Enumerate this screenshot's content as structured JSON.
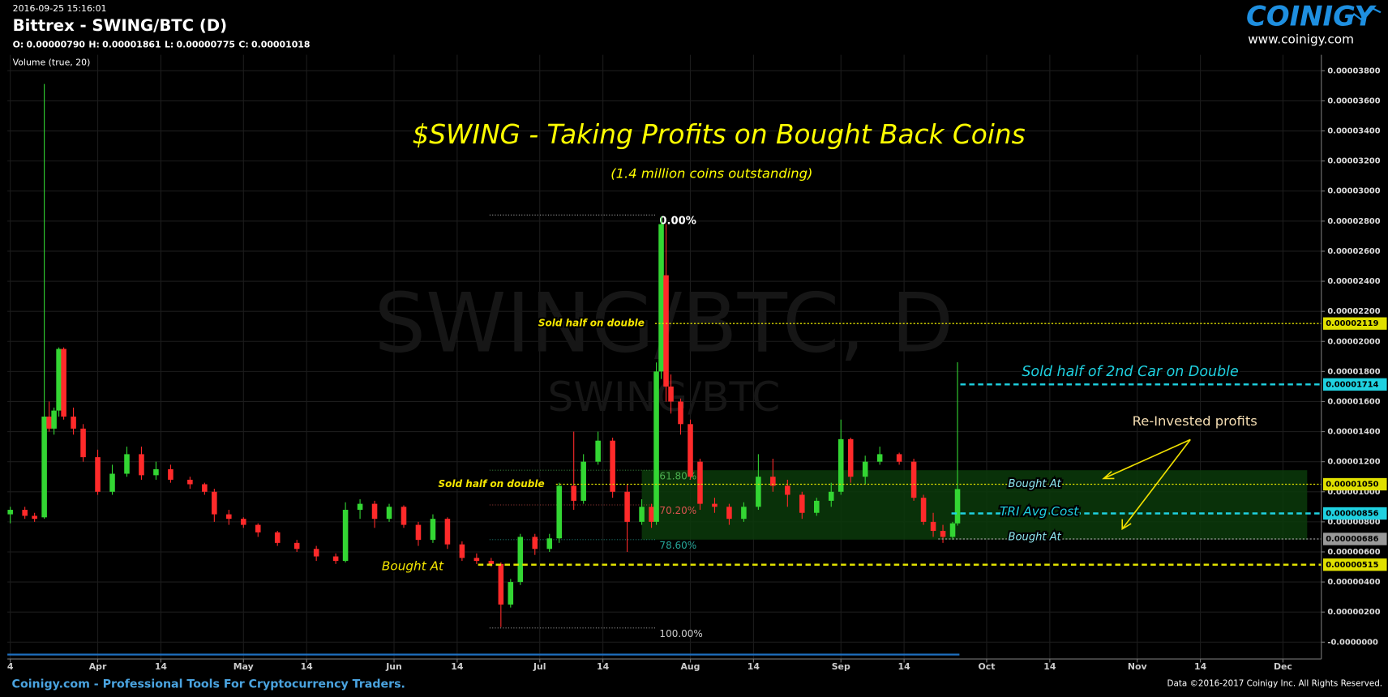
{
  "chart_data": {
    "type": "candlestick",
    "timestamp": "2016-09-25 15:16:01",
    "header": "Bittrex - SWING/BTC (D)",
    "last_ohlc": [
      {
        "name": "O:",
        "value": 7.9e-06,
        "label": "0.00000790"
      },
      {
        "name": "H:",
        "value": 1.861e-05,
        "label": "0.00001861"
      },
      {
        "name": "L:",
        "value": 7.75e-06,
        "label": "0.00000775"
      },
      {
        "name": "C:",
        "value": 1.018e-05,
        "label": "0.00001018"
      }
    ],
    "indicator": "Volume (true, 20)",
    "watermark": "SWING/BTC, D",
    "watermark_sub": "SWING/BTC",
    "title": "$SWING - Taking Profits on Bought Back Coins",
    "subtitle": "(1.4 million coins outstanding)",
    "logo": "COINIGY",
    "logo_url": "www.coinigy.com",
    "footer_left": "Coinigy.com - Professional Tools For Cryptocurrency Traders.",
    "footer_right": "Data ©2016-2017 Coinigy Inc. All Rights Reserved.",
    "up_color": "#33d633",
    "down_color": "#ff2a2a",
    "grid": true,
    "xlim": [
      73.4,
      343.9
    ],
    "ylim": [
      -1.12e-06,
      3.906e-05
    ],
    "xticks": [
      {
        "value": 74,
        "label": "4"
      },
      {
        "value": 92,
        "label": "Apr"
      },
      {
        "value": 105,
        "label": "14"
      },
      {
        "value": 122,
        "label": "May"
      },
      {
        "value": 135,
        "label": "14"
      },
      {
        "value": 153,
        "label": "Jun"
      },
      {
        "value": 166,
        "label": "14"
      },
      {
        "value": 183,
        "label": "Jul"
      },
      {
        "value": 196,
        "label": "14"
      },
      {
        "value": 214,
        "label": "Aug"
      },
      {
        "value": 227,
        "label": "14"
      },
      {
        "value": 245,
        "label": "Sep"
      },
      {
        "value": 258,
        "label": "14"
      },
      {
        "value": 275,
        "label": "Oct"
      },
      {
        "value": 288,
        "label": "14"
      },
      {
        "value": 306,
        "label": "Nov"
      },
      {
        "value": 319,
        "label": "14"
      },
      {
        "value": 336,
        "label": "Dec"
      }
    ],
    "yticks": [
      {
        "value": 0,
        "label": "-0.0000000"
      },
      {
        "value": 2e-06,
        "label": "0.00000200"
      },
      {
        "value": 4e-06,
        "label": "0.00000400"
      },
      {
        "value": 6e-06,
        "label": "0.00000600"
      },
      {
        "value": 8e-06,
        "label": "0.00000800"
      },
      {
        "value": 1e-05,
        "label": "0.00001000"
      },
      {
        "value": 1.2e-05,
        "label": "0.00001200"
      },
      {
        "value": 1.4e-05,
        "label": "0.00001400"
      },
      {
        "value": 1.6e-05,
        "label": "0.00001600"
      },
      {
        "value": 1.8e-05,
        "label": "0.00001800"
      },
      {
        "value": 2e-05,
        "label": "0.00002000"
      },
      {
        "value": 2.2e-05,
        "label": "0.00002200"
      },
      {
        "value": 2.4e-05,
        "label": "0.00002400"
      },
      {
        "value": 2.6e-05,
        "label": "0.00002600"
      },
      {
        "value": 2.8e-05,
        "label": "0.00002800"
      },
      {
        "value": 3e-05,
        "label": "0.00003000"
      },
      {
        "value": 3.2e-05,
        "label": "0.00003200"
      },
      {
        "value": 3.4e-05,
        "label": "0.00003400"
      },
      {
        "value": 3.6e-05,
        "label": "0.00003600"
      },
      {
        "value": 3.8e-05,
        "label": "0.00003800"
      }
    ],
    "x": [
      74,
      77,
      79,
      81,
      82,
      83,
      84,
      85,
      87,
      89,
      92,
      95,
      98,
      101,
      104,
      107,
      111,
      114,
      116,
      119,
      122,
      125,
      129,
      133,
      137,
      141,
      143,
      146,
      149,
      152,
      155,
      158,
      161,
      164,
      167,
      170,
      173,
      175,
      177,
      179,
      182,
      185,
      187,
      190,
      192,
      195,
      198,
      201,
      204,
      206,
      207,
      208,
      209,
      210,
      212,
      214,
      216,
      219,
      222,
      225,
      228,
      231,
      234,
      237,
      240,
      243,
      245,
      247,
      250,
      253,
      257,
      260,
      262,
      264,
      266,
      268,
      269
    ],
    "open": [
      8.5e-06,
      8.8e-06,
      8.4e-06,
      8.3e-06,
      1.5e-05,
      1.42e-05,
      1.54e-05,
      1.95e-05,
      1.5e-05,
      1.42e-05,
      1.23e-05,
      1e-05,
      1.12e-05,
      1.25e-05,
      1.11e-05,
      1.15e-05,
      1.08e-05,
      1.05e-05,
      1e-05,
      8.5e-06,
      8.2e-06,
      7.8e-06,
      7.3e-06,
      6.6e-06,
      6.2e-06,
      5.7e-06,
      5.4e-06,
      8.8e-06,
      9.2e-06,
      8.2e-06,
      9e-06,
      7.8e-06,
      6.8e-06,
      8.2e-06,
      6.5e-06,
      5.6e-06,
      5.4e-06,
      5.2e-06,
      2.5e-06,
      4e-06,
      7e-06,
      6.2e-06,
      6.9e-06,
      1.04e-05,
      9.4e-06,
      1.2e-05,
      1.34e-05,
      1e-05,
      8e-06,
      9e-06,
      8e-06,
      1.8e-05,
      2.44e-05,
      1.7e-05,
      1.6e-05,
      1.45e-05,
      1.2e-05,
      9.2e-06,
      9e-06,
      8.2e-06,
      9e-06,
      1.1e-05,
      1.04e-05,
      9.8e-06,
      8.6e-06,
      9.4e-06,
      1e-05,
      1.35e-05,
      1.1e-05,
      1.2e-05,
      1.25e-05,
      1.2e-05,
      9.6e-06,
      8e-06,
      7.4e-06,
      7e-06,
      7.9e-06
    ],
    "high": [
      9e-06,
      9e-06,
      8.6e-06,
      3.712e-05,
      1.6e-05,
      1.56e-05,
      1.96e-05,
      1.96e-05,
      1.56e-05,
      1.45e-05,
      1.28e-05,
      1.18e-05,
      1.3e-05,
      1.3e-05,
      1.2e-05,
      1.18e-05,
      1.1e-05,
      1.06e-05,
      1.02e-05,
      8.8e-06,
      8.3e-06,
      7.9e-06,
      7.4e-06,
      6.8e-06,
      6.4e-06,
      5.9e-06,
      9.3e-06,
      9.5e-06,
      9.4e-06,
      9.2e-06,
      9.1e-06,
      8e-06,
      8.5e-06,
      8.3e-06,
      6.7e-06,
      5.9e-06,
      5.6e-06,
      5.3e-06,
      4.2e-06,
      7.2e-06,
      7.2e-06,
      7.2e-06,
      1.06e-05,
      1.4e-05,
      1.25e-05,
      1.4e-05,
      1.36e-05,
      1.05e-05,
      9.5e-06,
      9.2e-06,
      1.86e-05,
      2.83e-05,
      2.78e-05,
      1.78e-05,
      1.62e-05,
      1.48e-05,
      1.22e-05,
      9.6e-06,
      9.2e-06,
      9.3e-06,
      1.25e-05,
      1.22e-05,
      1.08e-05,
      1e-05,
      9.6e-06,
      1.06e-05,
      1.48e-05,
      1.36e-05,
      1.24e-05,
      1.3e-05,
      1.26e-05,
      1.22e-05,
      9.8e-06,
      8.6e-06,
      7.8e-06,
      8e-06,
      1.861e-05
    ],
    "low": [
      7.9e-06,
      8.2e-06,
      8e-06,
      8.2e-06,
      1.4e-05,
      1.38e-05,
      1.5e-05,
      1.48e-05,
      1.38e-05,
      1.2e-05,
      9.8e-06,
      9.8e-06,
      1.1e-05,
      1.08e-05,
      1.08e-05,
      1.06e-05,
      1.02e-05,
      9.8e-06,
      8e-06,
      7.8e-06,
      7.6e-06,
      7e-06,
      6.4e-06,
      6e-06,
      5.4e-06,
      5.2e-06,
      5.3e-06,
      8.2e-06,
      7.6e-06,
      8e-06,
      7.6e-06,
      6.4e-06,
      6.6e-06,
      6.2e-06,
      5.4e-06,
      5.2e-06,
      5e-06,
      1e-06,
      2.3e-06,
      3.8e-06,
      5.8e-06,
      6e-06,
      6.6e-06,
      8.8e-06,
      9.2e-06,
      1.18e-05,
      9.6e-06,
      6e-06,
      7.8e-06,
      7.6e-06,
      7.8e-06,
      1.75e-05,
      1.6e-05,
      1.52e-05,
      1.38e-05,
      1.08e-05,
      8.8e-06,
      8.6e-06,
      7.8e-06,
      8e-06,
      8.8e-06,
      1e-05,
      9e-06,
      8.2e-06,
      8.4e-06,
      9e-06,
      9.8e-06,
      1.06e-05,
      1.05e-05,
      1.18e-05,
      1.18e-05,
      9.4e-06,
      7.8e-06,
      7e-06,
      6.6e-06,
      6.8e-06,
      7.75e-06
    ],
    "close": [
      8.8e-06,
      8.4e-06,
      8.2e-06,
      1.5e-05,
      1.42e-05,
      1.54e-05,
      1.95e-05,
      1.5e-05,
      1.42e-05,
      1.23e-05,
      1e-05,
      1.12e-05,
      1.25e-05,
      1.11e-05,
      1.15e-05,
      1.08e-05,
      1.05e-05,
      1e-05,
      8.5e-06,
      8.2e-06,
      7.8e-06,
      7.3e-06,
      6.6e-06,
      6.2e-06,
      5.7e-06,
      5.4e-06,
      8.8e-06,
      9.2e-06,
      8.2e-06,
      9e-06,
      7.8e-06,
      6.8e-06,
      8.2e-06,
      6.5e-06,
      5.6e-06,
      5.4e-06,
      5.2e-06,
      2.5e-06,
      4e-06,
      7e-06,
      6.2e-06,
      6.9e-06,
      1.04e-05,
      9.4e-06,
      1.2e-05,
      1.34e-05,
      1e-05,
      8e-06,
      9e-06,
      8e-06,
      1.8e-05,
      2.78e-05,
      1.7e-05,
      1.6e-05,
      1.45e-05,
      1.1e-05,
      9.2e-06,
      9e-06,
      8.2e-06,
      9e-06,
      1.1e-05,
      1.04e-05,
      9.8e-06,
      8.6e-06,
      9.4e-06,
      1e-05,
      1.35e-05,
      1.1e-05,
      1.2e-05,
      1.25e-05,
      1.2e-05,
      9.6e-06,
      8e-06,
      7.4e-06,
      7e-06,
      7.9e-06,
      1.018e-05
    ],
    "levels": [
      {
        "value": 2.119e-05,
        "label": "0.00002119",
        "color": "#e0e000",
        "dash": "dotted",
        "notes": [
          {
            "text": "Sold half on double",
            "color": "#f5e600"
          }
        ]
      },
      {
        "value": 1.714e-05,
        "label": "0.00001714",
        "color": "#1fd1e0",
        "dash": "dashed",
        "notes": [
          {
            "text": "Sold half of 2nd Car on Double",
            "color": "#1fd1e0"
          }
        ]
      },
      {
        "value": 1.05e-05,
        "label": "0.00001050",
        "color": "#e0e000",
        "dash": "dotted",
        "notes": [
          {
            "text": "Sold half on double",
            "color": "#f5e600"
          },
          {
            "text": "Bought At",
            "color": "#8fe8f0"
          }
        ]
      },
      {
        "value": 8.56e-06,
        "label": "0.00000856",
        "color": "#1fd1e0",
        "dash": "dashed",
        "notes": [
          {
            "text": "TRI Avg Cost",
            "color": "#1fd1e0"
          }
        ]
      },
      {
        "value": 6.86e-06,
        "label": "0.00000686",
        "color": "#999999",
        "dash": "dotted",
        "notes": [
          {
            "text": "Bought At",
            "color": "#8fe8f0"
          }
        ]
      },
      {
        "value": 5.15e-06,
        "label": "0.00000515",
        "color": "#e0e000",
        "dash": "dashed",
        "notes": [
          {
            "text": "Bought At",
            "color": "#f5e600"
          }
        ]
      }
    ],
    "fib": {
      "high": 2.841e-05,
      "low": 9.4e-07,
      "zone_color": "#0b3a0b",
      "levels": [
        {
          "value": 0,
          "label": "0.00%",
          "color": "#ffffff"
        },
        {
          "value": 61.8,
          "label": "61.80%",
          "color": "#4caf50"
        },
        {
          "value": 70.2,
          "label": "70.20%",
          "color": "#d9534f"
        },
        {
          "value": 78.6,
          "label": "78.60%",
          "color": "#26a69a"
        },
        {
          "value": 100,
          "label": "100.00%",
          "color": "#cccccc"
        }
      ]
    },
    "annotations": [
      {
        "text": "Re-Invested profits",
        "color": "#f5deb3"
      }
    ]
  }
}
